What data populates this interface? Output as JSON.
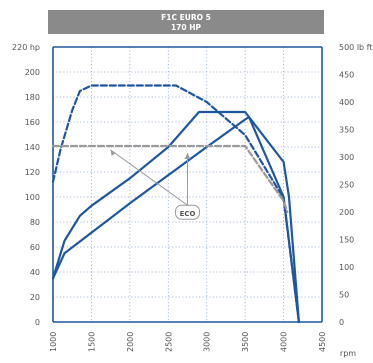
{
  "chart_data": {
    "type": "line",
    "title": "F1C EURO 5",
    "subtitle": "170 HP",
    "xlabel": "rpm",
    "x_ticks": [
      "1000",
      "1500",
      "2000",
      "2500",
      "3000",
      "3500",
      "4000",
      "4500"
    ],
    "xlim": [
      1000,
      4500
    ],
    "y_left": {
      "ticks": [
        "0",
        "20",
        "40",
        "60",
        "80",
        "100",
        "120",
        "140",
        "160",
        "180",
        "200",
        "220 hp"
      ],
      "lim": [
        0,
        220
      ]
    },
    "y_right": {
      "ticks": [
        "0",
        "50",
        "100",
        "150",
        "200",
        "250",
        "300",
        "350",
        "400",
        "450",
        "500 lb ft"
      ],
      "lim": [
        0,
        500
      ]
    },
    "annotation": "ECO",
    "grid": true,
    "series": [
      {
        "key": "power",
        "axis": "left",
        "style": "solid",
        "color": "#1f56a0",
        "points": [
          [
            1000,
            35
          ],
          [
            1150,
            65
          ],
          [
            1350,
            85
          ],
          [
            1500,
            93
          ],
          [
            2000,
            115
          ],
          [
            2500,
            140
          ],
          [
            2900,
            168
          ],
          [
            3500,
            168
          ],
          [
            4000,
            128
          ],
          [
            4070,
            100
          ],
          [
            4200,
            0
          ]
        ]
      },
      {
        "key": "torque",
        "axis": "right",
        "style": "dashed",
        "color": "#1f56a0",
        "points": [
          [
            1000,
            255
          ],
          [
            1100,
            315
          ],
          [
            1250,
            385
          ],
          [
            1350,
            420
          ],
          [
            1500,
            430
          ],
          [
            2000,
            430
          ],
          [
            2600,
            430
          ],
          [
            3000,
            400
          ],
          [
            3500,
            340
          ],
          [
            4000,
            225
          ],
          [
            4200,
            0
          ]
        ]
      },
      {
        "key": "eco-power",
        "axis": "left",
        "style": "solid",
        "color": "#1f56a0",
        "points": [
          [
            1000,
            35
          ],
          [
            1150,
            55
          ],
          [
            2000,
            95
          ],
          [
            3000,
            140
          ],
          [
            3500,
            162
          ],
          [
            3550,
            164
          ],
          [
            4000,
            100
          ],
          [
            4200,
            0
          ]
        ]
      },
      {
        "key": "eco-torque",
        "axis": "right",
        "style": "dashed",
        "color": "#9a9a9a",
        "points": [
          [
            1000,
            320
          ],
          [
            3500,
            320
          ],
          [
            4000,
            220
          ],
          [
            4050,
            200
          ]
        ]
      }
    ]
  },
  "colors": {
    "header_bg": "#8a8a8a",
    "axis": "#1f56a0",
    "grid": "#8fa9cf",
    "eco_line": "#9a9a9a"
  }
}
